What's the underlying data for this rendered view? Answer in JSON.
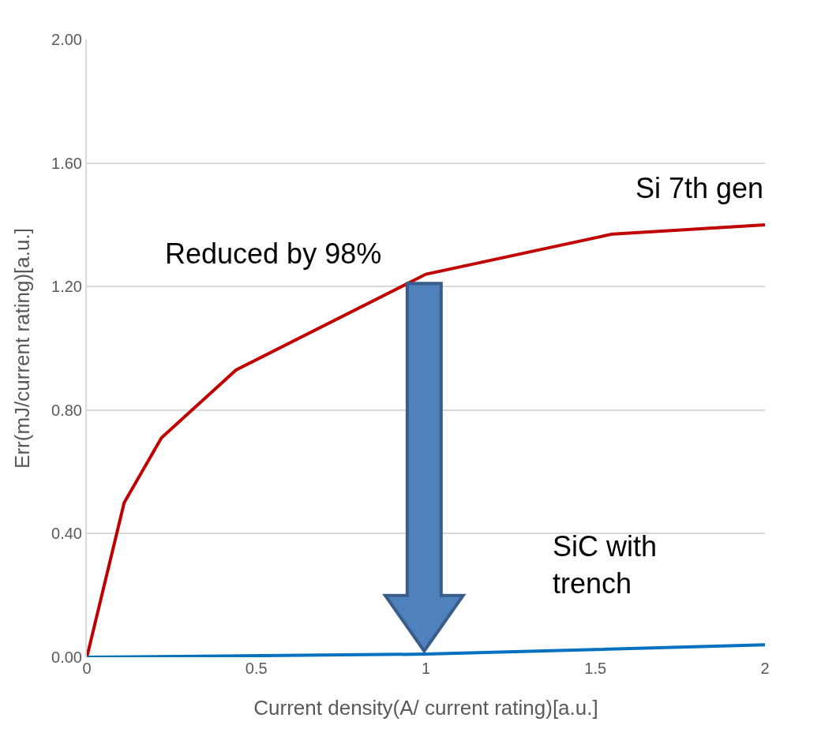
{
  "chart_data": {
    "type": "line",
    "xlabel": "Current density(A/ current rating)[a.u.]",
    "ylabel": "Err(mJ/current rating)[a.u.]",
    "series": [
      {
        "name": "Si 7th gen",
        "color": "#c00000",
        "x": [
          0,
          0.11,
          0.22,
          0.44,
          1.0,
          1.55,
          2.0
        ],
        "values": [
          0,
          0.5,
          0.71,
          0.93,
          1.24,
          1.37,
          1.4
        ]
      },
      {
        "name": "SiC with trench",
        "color": "#0070c0",
        "x": [
          0,
          1.0,
          2.0
        ],
        "values": [
          0,
          0.01,
          0.04
        ]
      }
    ],
    "annotations": [
      "Reduced by 98%"
    ],
    "xlim": [
      0,
      2
    ],
    "xticks": [
      0,
      0.5,
      1,
      1.5,
      2
    ],
    "ylim": [
      0,
      2
    ],
    "yticks": [
      {
        "value": 0,
        "label": "0.00"
      },
      {
        "value": 0.4,
        "label": "0.40"
      },
      {
        "value": 0.8,
        "label": "0.80"
      },
      {
        "value": 1.2,
        "label": "1.20"
      },
      {
        "value": 1.6,
        "label": "1.60"
      },
      {
        "value": 2,
        "label": "2.00"
      }
    ],
    "grid": "y",
    "legend": false,
    "marker": "none",
    "line_style": "solid"
  }
}
